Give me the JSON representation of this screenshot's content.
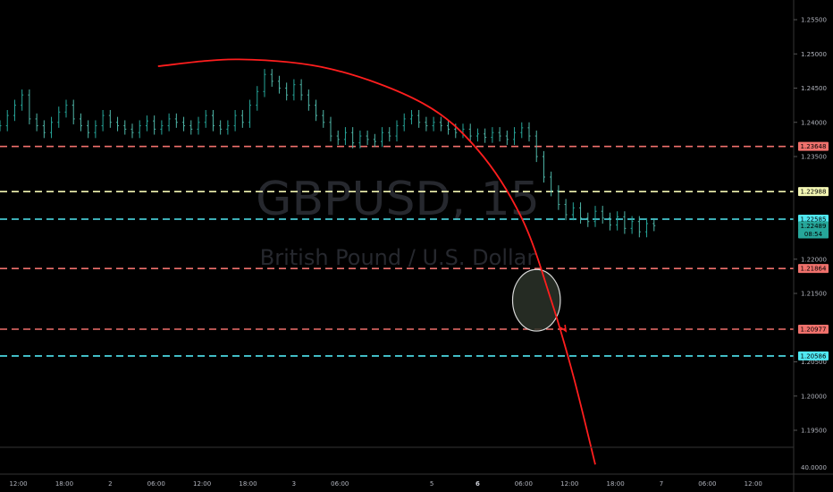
{
  "chart_data": {
    "type": "candlestick",
    "watermark": {
      "symbol": "GBPUSD, 15",
      "description": "British Pound / U.S. Dollar"
    },
    "y_axis": {
      "ylim": [
        1.19,
        1.26
      ],
      "ticks": [
        "1.25500",
        "1.25000",
        "1.24500",
        "1.24000",
        "1.23500",
        "1.22000",
        "1.21500",
        "1.20500",
        "1.20000",
        "1.19500"
      ],
      "tick_values": [
        1.255,
        1.25,
        1.245,
        1.24,
        1.235,
        1.22,
        1.215,
        1.205,
        1.2,
        1.195
      ]
    },
    "volume_axis": {
      "ticks": [
        "40.0000"
      ]
    },
    "x_axis": {
      "ticks": [
        {
          "label": "12:00",
          "x": 0.5
        },
        {
          "label": "18:00",
          "x": 1.75
        },
        {
          "label": "2",
          "x": 3.0,
          "bold": false
        },
        {
          "label": "06:00",
          "x": 4.25
        },
        {
          "label": "12:00",
          "x": 5.5
        },
        {
          "label": "18:00",
          "x": 6.75
        },
        {
          "label": "3",
          "x": 8.0
        },
        {
          "label": "06:00",
          "x": 9.25
        },
        {
          "label": "5",
          "x": 11.75
        },
        {
          "label": "6",
          "x": 13.0,
          "bold": true
        },
        {
          "label": "06:00",
          "x": 14.25
        },
        {
          "label": "12:00",
          "x": 15.5
        },
        {
          "label": "18:00",
          "x": 16.75
        },
        {
          "label": "7",
          "x": 18.0
        },
        {
          "label": "06:00",
          "x": 19.25
        },
        {
          "label": "12:00",
          "x": 20.5
        }
      ],
      "xlim": [
        0,
        21.6
      ]
    },
    "horizontal_levels": [
      {
        "value": 1.23648,
        "label": "1.23648",
        "color": "#f0716c",
        "style": "dashed"
      },
      {
        "value": 1.22988,
        "label": "1.22988",
        "color": "#f4f7b4",
        "style": "dashed"
      },
      {
        "value": 1.22585,
        "label": "1.22585",
        "color": "#50e8f2",
        "style": "dashed"
      },
      {
        "value": 1.21864,
        "label": "1.21864",
        "color": "#f0716c",
        "style": "dashed"
      },
      {
        "value": 1.20977,
        "label": "1.20977",
        "color": "#f0716c",
        "style": "dashed"
      },
      {
        "value": 1.20586,
        "label": "1.20586",
        "color": "#50e8f2",
        "style": "dashed"
      }
    ],
    "price_labels": [
      {
        "value": 1.22489,
        "label": "1.22489",
        "color": "#26a69a"
      },
      {
        "value": 1.2237,
        "label": "08:54",
        "color": "#26a69a"
      }
    ],
    "price_series": {
      "x_start": 0.0,
      "x_step": 0.2,
      "close": [
        1.2395,
        1.241,
        1.2425,
        1.244,
        1.2405,
        1.2395,
        1.2385,
        1.24,
        1.2415,
        1.2425,
        1.2405,
        1.2395,
        1.2385,
        1.2395,
        1.241,
        1.24,
        1.2395,
        1.239,
        1.2385,
        1.2395,
        1.2402,
        1.239,
        1.2395,
        1.2405,
        1.24,
        1.2395,
        1.239,
        1.24,
        1.241,
        1.2395,
        1.239,
        1.2395,
        1.241,
        1.24,
        1.2425,
        1.2445,
        1.247,
        1.246,
        1.245,
        1.244,
        1.2455,
        1.244,
        1.2425,
        1.241,
        1.24,
        1.238,
        1.2375,
        1.2385,
        1.237,
        1.238,
        1.2375,
        1.2372,
        1.2385,
        1.238,
        1.2395,
        1.2405,
        1.241,
        1.24,
        1.2395,
        1.24,
        1.2395,
        1.239,
        1.2385,
        1.239,
        1.238,
        1.2383,
        1.2378,
        1.2385,
        1.238,
        1.2375,
        1.2385,
        1.2392,
        1.238,
        1.235,
        1.232,
        1.23,
        1.228,
        1.2265,
        1.2275,
        1.226,
        1.2255,
        1.227,
        1.226,
        1.225,
        1.2262,
        1.2245,
        1.2255,
        1.224,
        1.2252,
        1.2249
      ]
    },
    "curve": {
      "color": "#ff1e1e",
      "points": [
        [
          4.3,
          1.2482
        ],
        [
          6.5,
          1.2492
        ],
        [
          9.0,
          1.2478
        ],
        [
          11.5,
          1.2428
        ],
        [
          13.0,
          1.236
        ],
        [
          14.2,
          1.226
        ],
        [
          15.0,
          1.214
        ],
        [
          15.6,
          1.203
        ],
        [
          16.2,
          1.19
        ]
      ]
    },
    "arrow": {
      "color": "#ff1e1e",
      "from": [
        15.0,
        1.213
      ],
      "to": [
        15.4,
        1.2095
      ]
    },
    "ellipse": {
      "cx": 14.6,
      "cy": 1.214,
      "rx": 0.65,
      "ry": 0.0045,
      "fill": "#2b3329",
      "stroke": "#d8d8d8"
    }
  }
}
